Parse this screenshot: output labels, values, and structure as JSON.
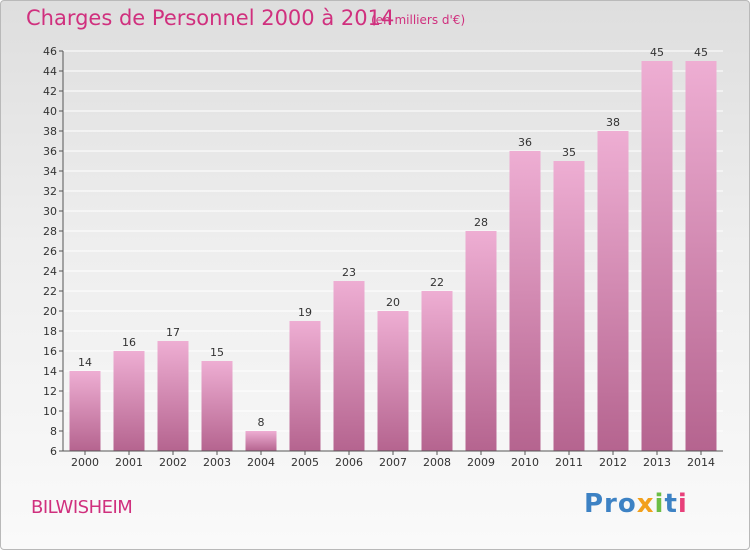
{
  "title": "Charges de Personnel 2000 à 2014",
  "subtitle": "(en milliers d'€)",
  "commune": "BILWISHEIM",
  "logo": [
    "Pro",
    "x",
    "i",
    "t",
    "i"
  ],
  "colors": {
    "accent_text": "#d0307e",
    "bar_light": "#eeaed3",
    "bar_dark": "#b5648f",
    "grid": "#ffffff"
  },
  "chart_data": {
    "type": "bar",
    "categories": [
      "2000",
      "2001",
      "2002",
      "2003",
      "2004",
      "2005",
      "2006",
      "2007",
      "2008",
      "2009",
      "2010",
      "2011",
      "2012",
      "2013",
      "2014"
    ],
    "values": [
      14,
      16,
      17,
      15,
      8,
      19,
      23,
      20,
      22,
      28,
      36,
      35,
      38,
      45,
      45
    ],
    "ylim": [
      6,
      46
    ],
    "yticks": [
      6,
      8,
      10,
      12,
      14,
      16,
      18,
      20,
      22,
      24,
      26,
      28,
      30,
      32,
      34,
      36,
      38,
      40,
      42,
      44,
      46
    ],
    "grid": true,
    "data_labels": true
  }
}
